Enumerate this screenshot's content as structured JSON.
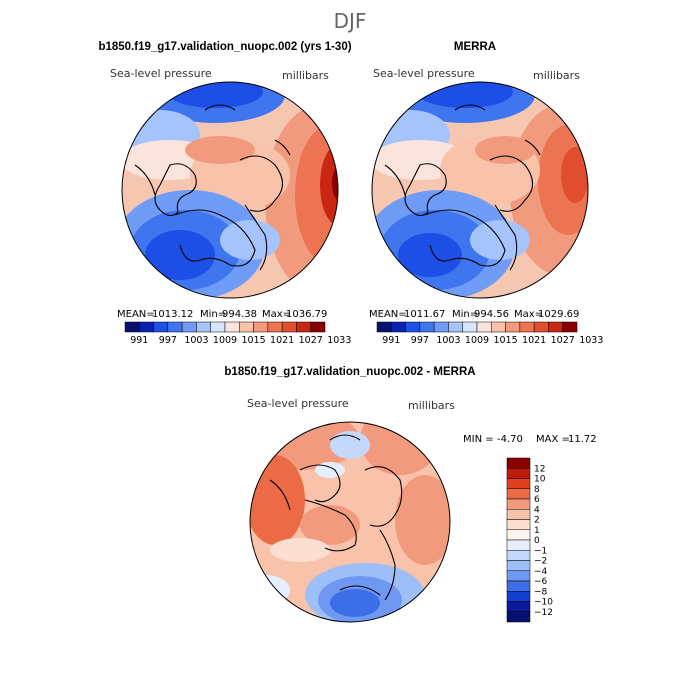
{
  "page": {
    "season_title": "DJF",
    "colors": {
      "ocean_low": "#0a1a9c",
      "high": "#8a0000",
      "neutral": "#ffffff",
      "coast": "#000000"
    }
  },
  "chart_data": [
    {
      "type": "heatmap",
      "title": "b1850.f19_g17.validation_nuopc.002 (yrs 1-30)",
      "variable_label": "Sea-level pressure",
      "units_label": "millibars",
      "stats": {
        "mean_label": "MEAN=",
        "mean": "1013.12",
        "min_label": "Min=",
        "min": "994.38",
        "max_label": "Max=",
        "max": "1036.79"
      },
      "colorbar": {
        "orientation": "horizontal",
        "ticks": [
          "991",
          "997",
          "1003",
          "1009",
          "1015",
          "1021",
          "1027",
          "1033"
        ],
        "colors": [
          "#08126e",
          "#0a22b0",
          "#1d4fe6",
          "#3f76f0",
          "#6f9cf6",
          "#a4c4fb",
          "#d6e6ff",
          "#fbe4dc",
          "#f8c2ab",
          "#f29a7e",
          "#ec7453",
          "#e04e2e",
          "#c92712",
          "#8a0000"
        ]
      }
    },
    {
      "type": "heatmap",
      "title": "MERRA",
      "variable_label": "Sea-level pressure",
      "units_label": "millibars",
      "stats": {
        "mean_label": "MEAN=",
        "mean": "1011.67",
        "min_label": "Min=",
        "min": "994.56",
        "max_label": "Max=",
        "max": "1029.69"
      },
      "colorbar": {
        "orientation": "horizontal",
        "ticks": [
          "991",
          "997",
          "1003",
          "1009",
          "1015",
          "1021",
          "1027",
          "1033"
        ],
        "colors": [
          "#08126e",
          "#0a22b0",
          "#1d4fe6",
          "#3f76f0",
          "#6f9cf6",
          "#a4c4fb",
          "#d6e6ff",
          "#fbe4dc",
          "#f8c2ab",
          "#f29a7e",
          "#ec7453",
          "#e04e2e",
          "#c92712",
          "#8a0000"
        ]
      }
    },
    {
      "type": "heatmap",
      "title": "b1850.f19_g17.validation_nuopc.002 - MERRA",
      "variable_label": "Sea-level pressure",
      "units_label": "millibars",
      "stats": {
        "min_label": "MIN =",
        "min": "-4.70",
        "max_label": "MAX =",
        "max": "11.72"
      },
      "colorbar": {
        "orientation": "vertical",
        "ticks": [
          "12",
          "10",
          "8",
          "6",
          "4",
          "2",
          "1",
          "0",
          "−1",
          "−2",
          "−4",
          "−6",
          "−8",
          "−10",
          "−12"
        ],
        "colors": [
          "#8a0000",
          "#c01c0c",
          "#e0401f",
          "#ec6a45",
          "#f29a7e",
          "#f8c2ab",
          "#fbe0d2",
          "#fff4ee",
          "#e6efff",
          "#c4d8fc",
          "#9ebef8",
          "#6f98f2",
          "#3c6ee8",
          "#1440d2",
          "#0a1a9c",
          "#061070"
        ]
      }
    }
  ]
}
